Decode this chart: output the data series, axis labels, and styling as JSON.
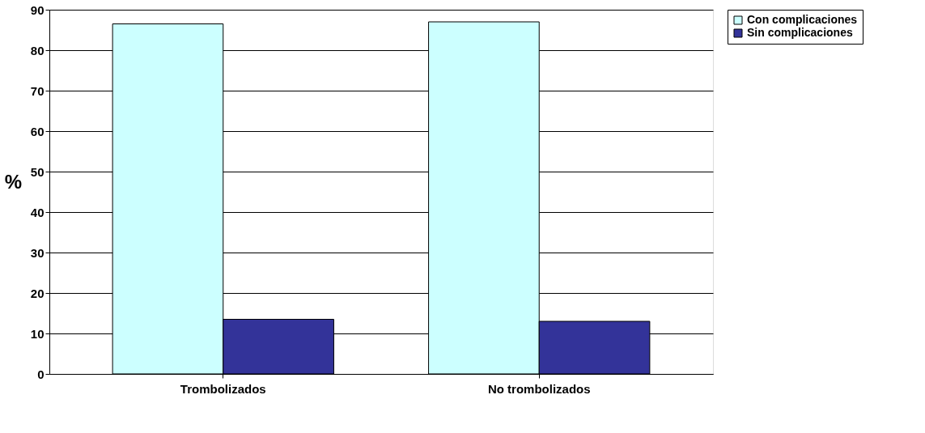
{
  "chart_data": {
    "type": "bar",
    "ylabel": "%",
    "categories": [
      "Trombolizados",
      "No trombolizados"
    ],
    "series": [
      {
        "name": "Con complicaciones",
        "color": "#ccffff",
        "values": [
          86.5,
          87
        ]
      },
      {
        "name": "Sin complicaciones",
        "color": "#333399",
        "values": [
          13.5,
          13
        ]
      }
    ],
    "ylim": [
      0,
      90
    ],
    "yticks": [
      0,
      10,
      20,
      30,
      40,
      50,
      60,
      70,
      80,
      90
    ],
    "grid": "y",
    "legend": "right"
  }
}
